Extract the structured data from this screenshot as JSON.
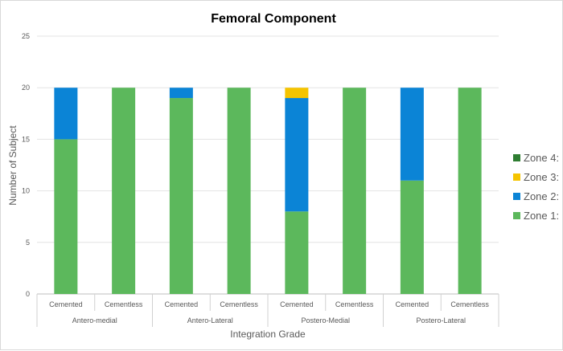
{
  "chart_data": {
    "type": "bar",
    "stacked": true,
    "title": "Femoral Component",
    "xlabel": "Integration Grade",
    "ylabel": "Number of Subject",
    "ylim": [
      0,
      25
    ],
    "yticks": [
      0,
      5,
      10,
      15,
      20,
      25
    ],
    "categories": [
      "Cemented",
      "Cementless",
      "Cemented",
      "Cementless",
      "Cemented",
      "Cementless",
      "Cemented",
      "Cementless"
    ],
    "groups": [
      "Antero-medial",
      "Antero-Lateral",
      "Postero-Medial",
      "Postero-Lateral"
    ],
    "series": [
      {
        "name": "Zone 1:",
        "color": "#5cb85c",
        "values": [
          15,
          20,
          19,
          20,
          8,
          20,
          11,
          20
        ]
      },
      {
        "name": "Zone 2:",
        "color": "#0b84d6",
        "values": [
          5,
          0,
          1,
          0,
          11,
          0,
          9,
          0
        ]
      },
      {
        "name": "Zone 3:",
        "color": "#f5c400",
        "values": [
          0,
          0,
          0,
          0,
          1,
          0,
          0,
          0
        ]
      },
      {
        "name": "Zone 4:",
        "color": "#2e7d32",
        "values": [
          0,
          0,
          0,
          0,
          0,
          0,
          0,
          0
        ]
      }
    ],
    "legend_position": "right",
    "grid": true
  }
}
